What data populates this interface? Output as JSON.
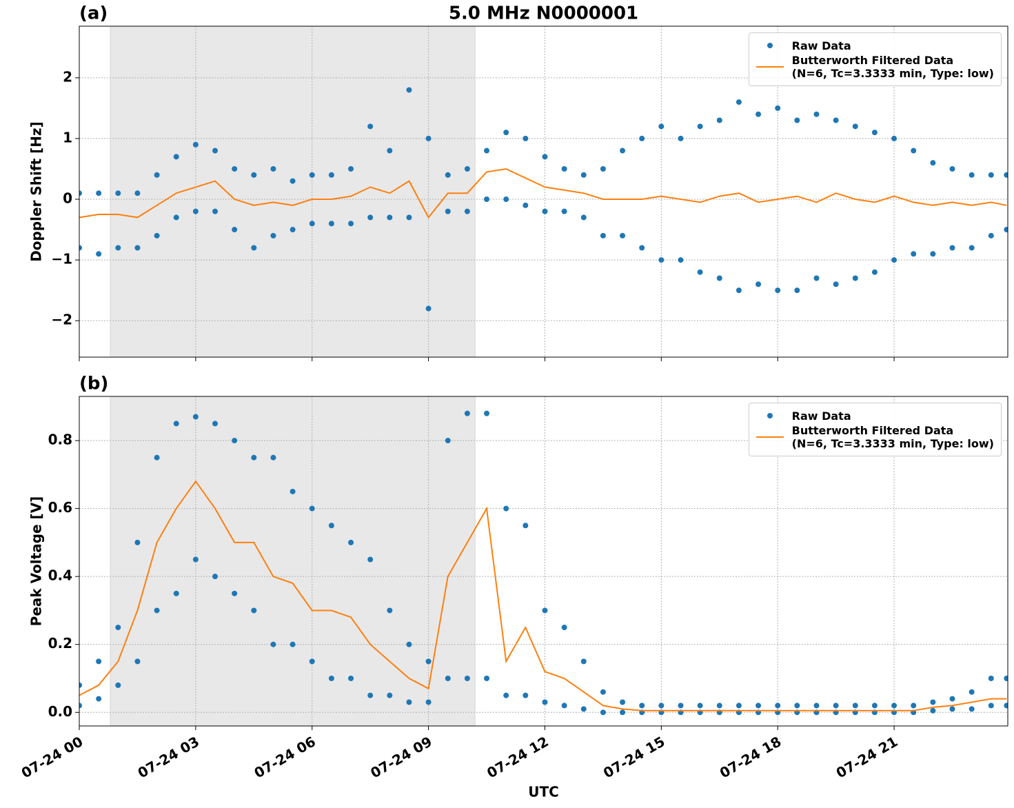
{
  "chart_data": [
    {
      "type": "scatter",
      "title": "5.0 MHz N0000001",
      "panel_label": "(a)",
      "ylabel": "Doppler Shift [Hz]",
      "xlim": [
        0,
        23.93
      ],
      "xticks": [
        0,
        3,
        6,
        9,
        12,
        15,
        18,
        21
      ],
      "ylim": [
        -2.6,
        2.85
      ],
      "yticks": [
        {
          "value": -2,
          "label": "−2"
        },
        {
          "value": -1,
          "label": "−1"
        },
        0,
        1,
        2
      ],
      "grid": true,
      "legend": "upper right",
      "highlight_span": [
        0.8,
        10.2
      ],
      "series": [
        {
          "name": "Raw Data",
          "color": "#1f77b4",
          "style": "markers",
          "x": [
            0,
            0,
            0.5,
            0.5,
            1,
            1,
            1.5,
            1.5,
            2,
            2,
            2.5,
            2.5,
            3,
            3,
            3.5,
            3.5,
            4,
            4,
            4.5,
            4.5,
            5,
            5,
            5.5,
            5.5,
            6,
            6,
            6.5,
            6.5,
            7,
            7,
            7.5,
            7.5,
            8,
            8,
            8.5,
            8.5,
            9,
            9,
            9.5,
            9.5,
            10,
            10,
            10.5,
            10.5,
            11,
            11,
            11.5,
            11.5,
            12,
            12,
            12.5,
            12.5,
            13,
            13,
            13.5,
            13.5,
            14,
            14,
            14.5,
            14.5,
            15,
            15,
            15.5,
            15.5,
            16,
            16,
            16.5,
            16.5,
            17,
            17,
            17.5,
            17.5,
            18,
            18,
            18.5,
            18.5,
            19,
            19,
            19.5,
            19.5,
            20,
            20,
            20.5,
            20.5,
            21,
            21,
            21.5,
            21.5,
            22,
            22,
            22.5,
            22.5,
            23,
            23,
            23.5,
            23.5,
            23.9,
            23.9
          ],
          "values": [
            0.1,
            -0.8,
            0.1,
            -0.9,
            0.1,
            -0.8,
            0.1,
            -0.8,
            0.4,
            -0.6,
            0.7,
            -0.3,
            0.9,
            -0.2,
            0.8,
            -0.2,
            0.5,
            -0.5,
            0.4,
            -0.8,
            0.5,
            -0.6,
            0.3,
            -0.5,
            0.4,
            -0.4,
            0.4,
            -0.4,
            0.5,
            -0.4,
            1.2,
            -0.3,
            0.8,
            -0.3,
            1.8,
            -0.3,
            1.0,
            -1.8,
            0.4,
            -0.2,
            0.5,
            -0.2,
            0.8,
            0.0,
            1.1,
            0.0,
            1.0,
            -0.1,
            0.7,
            -0.2,
            0.5,
            -0.2,
            0.4,
            -0.3,
            0.5,
            -0.6,
            0.8,
            -0.6,
            1.0,
            -0.8,
            1.2,
            -1.0,
            1.0,
            -1.0,
            1.2,
            -1.2,
            1.3,
            -1.3,
            1.6,
            -1.5,
            1.4,
            -1.4,
            1.5,
            -1.5,
            1.3,
            -1.5,
            1.4,
            -1.3,
            1.3,
            -1.4,
            1.2,
            -1.3,
            1.1,
            -1.2,
            1.0,
            -1.0,
            0.8,
            -0.9,
            0.6,
            -0.9,
            0.5,
            -0.8,
            0.4,
            -0.8,
            0.4,
            -0.6,
            0.4,
            -0.5
          ]
        },
        {
          "name": "Butterworth Filtered Data\n(N=6, Tc=3.3333 min, Type: low)",
          "color": "#ff7f0e",
          "style": "line",
          "x": [
            0,
            0.5,
            1,
            1.5,
            2,
            2.5,
            3,
            3.5,
            4,
            4.5,
            5,
            5.5,
            6,
            6.5,
            7,
            7.5,
            8,
            8.5,
            9,
            9.5,
            10,
            10.5,
            11,
            11.5,
            12,
            12.5,
            13,
            13.5,
            14,
            14.5,
            15,
            15.5,
            16,
            16.5,
            17,
            17.5,
            18,
            18.5,
            19,
            19.5,
            20,
            20.5,
            21,
            21.5,
            22,
            22.5,
            23,
            23.5,
            23.9
          ],
          "values": [
            -0.3,
            -0.25,
            -0.25,
            -0.3,
            -0.1,
            0.1,
            0.2,
            0.3,
            0.0,
            -0.1,
            -0.05,
            -0.1,
            0.0,
            0.0,
            0.05,
            0.2,
            0.1,
            0.3,
            -0.3,
            0.1,
            0.1,
            0.45,
            0.5,
            0.35,
            0.2,
            0.15,
            0.1,
            0.0,
            0.0,
            0.0,
            0.05,
            0.0,
            -0.05,
            0.05,
            0.1,
            -0.05,
            0.0,
            0.05,
            -0.05,
            0.1,
            0.0,
            -0.05,
            0.05,
            -0.05,
            -0.1,
            -0.05,
            -0.1,
            -0.05,
            -0.1
          ]
        }
      ]
    },
    {
      "type": "scatter",
      "panel_label": "(b)",
      "ylabel": "Peak Voltage [V]",
      "xlabel": "UTC",
      "xlim": [
        0,
        23.93
      ],
      "xticks": [
        {
          "value": 0,
          "label": "07-24 00"
        },
        {
          "value": 3,
          "label": "07-24 03"
        },
        {
          "value": 6,
          "label": "07-24 06"
        },
        {
          "value": 9,
          "label": "07-24 09"
        },
        {
          "value": 12,
          "label": "07-24 12"
        },
        {
          "value": 15,
          "label": "07-24 15"
        },
        {
          "value": 18,
          "label": "07-24 18"
        },
        {
          "value": 21,
          "label": "07-24 21"
        }
      ],
      "ylim": [
        -0.04,
        0.93
      ],
      "yticks": [
        {
          "value": 0,
          "label": "0.0"
        },
        0.2,
        0.4,
        0.6,
        0.8
      ],
      "grid": true,
      "legend": "upper right",
      "highlight_span": [
        0.8,
        10.2
      ],
      "series": [
        {
          "name": "Raw Data",
          "color": "#1f77b4",
          "style": "markers",
          "x": [
            0,
            0,
            0.5,
            0.5,
            1,
            1,
            1.5,
            1.5,
            2,
            2,
            2.5,
            2.5,
            3,
            3,
            3.5,
            3.5,
            4,
            4,
            4.5,
            4.5,
            5,
            5,
            5.5,
            5.5,
            6,
            6,
            6.5,
            6.5,
            7,
            7,
            7.5,
            7.5,
            8,
            8,
            8.5,
            8.5,
            9,
            9,
            9.5,
            9.5,
            10,
            10,
            10.5,
            10.5,
            11,
            11,
            11.5,
            11.5,
            12,
            12,
            12.5,
            12.5,
            13,
            13,
            13.5,
            13.5,
            14,
            14,
            14.5,
            14.5,
            15,
            15,
            15.5,
            15.5,
            16,
            16,
            16.5,
            16.5,
            17,
            17,
            17.5,
            17.5,
            18,
            18,
            18.5,
            18.5,
            19,
            19,
            19.5,
            19.5,
            20,
            20,
            20.5,
            20.5,
            21,
            21,
            21.5,
            21.5,
            22,
            22,
            22.5,
            22.5,
            23,
            23,
            23.5,
            23.5,
            23.9,
            23.9
          ],
          "values": [
            0.08,
            0.02,
            0.15,
            0.04,
            0.25,
            0.08,
            0.5,
            0.15,
            0.75,
            0.3,
            0.85,
            0.35,
            0.87,
            0.45,
            0.85,
            0.4,
            0.8,
            0.35,
            0.75,
            0.3,
            0.75,
            0.2,
            0.65,
            0.2,
            0.6,
            0.15,
            0.55,
            0.1,
            0.5,
            0.1,
            0.45,
            0.05,
            0.3,
            0.05,
            0.2,
            0.03,
            0.15,
            0.03,
            0.8,
            0.1,
            0.88,
            0.1,
            0.88,
            0.1,
            0.6,
            0.05,
            0.55,
            0.05,
            0.3,
            0.03,
            0.25,
            0.02,
            0.15,
            0.01,
            0.06,
            0,
            0.03,
            0,
            0.02,
            0,
            0.02,
            0,
            0.02,
            0,
            0.02,
            0,
            0.02,
            0,
            0.02,
            0,
            0.02,
            0,
            0.02,
            0,
            0.02,
            0,
            0.02,
            0,
            0.02,
            0,
            0.02,
            0,
            0.02,
            0,
            0.02,
            0,
            0.02,
            0,
            0.03,
            0.005,
            0.04,
            0.01,
            0.06,
            0.01,
            0.1,
            0.02,
            0.1,
            0.02
          ]
        },
        {
          "name": "Butterworth Filtered Data\n(N=6, Tc=3.3333 min, Type: low)",
          "color": "#ff7f0e",
          "style": "line",
          "x": [
            0,
            0.5,
            1,
            1.5,
            2,
            2.5,
            3,
            3.5,
            4,
            4.5,
            5,
            5.5,
            6,
            6.5,
            7,
            7.5,
            8,
            8.5,
            9,
            9.5,
            10,
            10.5,
            11,
            11.5,
            12,
            12.5,
            13,
            13.5,
            14,
            14.5,
            15,
            15.5,
            16,
            16.5,
            17,
            17.5,
            18,
            18.5,
            19,
            19.5,
            20,
            20.5,
            21,
            21.5,
            22,
            22.5,
            23,
            23.5,
            23.9
          ],
          "values": [
            0.05,
            0.08,
            0.15,
            0.3,
            0.5,
            0.6,
            0.68,
            0.6,
            0.5,
            0.5,
            0.4,
            0.38,
            0.3,
            0.3,
            0.28,
            0.2,
            0.15,
            0.1,
            0.07,
            0.4,
            0.5,
            0.6,
            0.15,
            0.25,
            0.12,
            0.1,
            0.06,
            0.02,
            0.01,
            0.005,
            0.005,
            0.005,
            0.005,
            0.005,
            0.005,
            0.005,
            0.005,
            0.005,
            0.005,
            0.005,
            0.005,
            0.005,
            0.005,
            0.005,
            0.015,
            0.02,
            0.03,
            0.04,
            0.04
          ]
        }
      ]
    }
  ]
}
